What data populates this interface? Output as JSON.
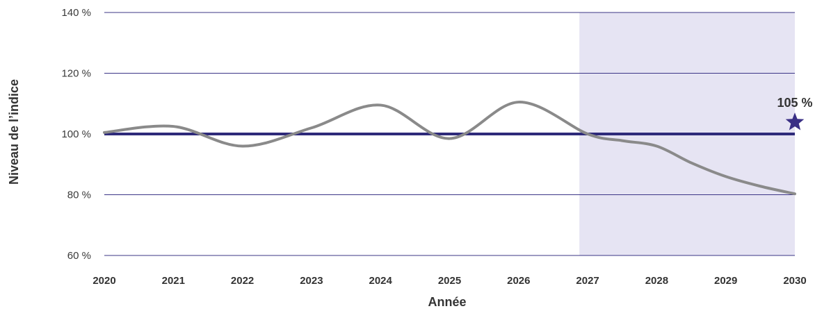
{
  "chart_data": {
    "type": "line",
    "xlabel": "Année",
    "ylabel": "Niveau de l’indice",
    "x": [
      2020,
      2021,
      2022,
      2023,
      2024,
      2025,
      2026,
      2027,
      2028,
      2029,
      2030
    ],
    "x_tick_labels": [
      "2020",
      "2021",
      "2022",
      "2023",
      "2024",
      "2025",
      "2026",
      "2027",
      "2028",
      "2029",
      "2030"
    ],
    "ylim": [
      60,
      140
    ],
    "y_ticks": [
      60,
      80,
      100,
      120,
      140
    ],
    "y_tick_labels": [
      "60 %",
      "80 %",
      "100 %",
      "120 %",
      "140 %"
    ],
    "grid": "horizontal",
    "shaded_region": {
      "x_start": 2026.88,
      "x_end": 2030,
      "color": "#e6e4f3"
    },
    "series": [
      {
        "color": "#8a8a8a",
        "points": [
          [
            2020,
            100.5
          ],
          [
            2021,
            102.5
          ],
          [
            2022,
            96
          ],
          [
            2023,
            102
          ],
          [
            2024,
            109.5
          ],
          [
            2025,
            98.5
          ],
          [
            2026,
            110.5
          ],
          [
            2027,
            100
          ],
          [
            2027.5,
            97.8
          ],
          [
            2028,
            96
          ],
          [
            2028.5,
            90.5
          ],
          [
            2029,
            86
          ],
          [
            2029.5,
            82.8
          ],
          [
            2030,
            80.3
          ]
        ]
      },
      {
        "color": "#2e2a7a",
        "points": [
          [
            2020,
            100
          ],
          [
            2030,
            100
          ]
        ]
      }
    ],
    "target": {
      "x": 2030,
      "y": 105,
      "label": "105 %",
      "color": "#3a2f85"
    },
    "colors": {
      "grid": "#3b3486",
      "text": "#333333"
    }
  }
}
